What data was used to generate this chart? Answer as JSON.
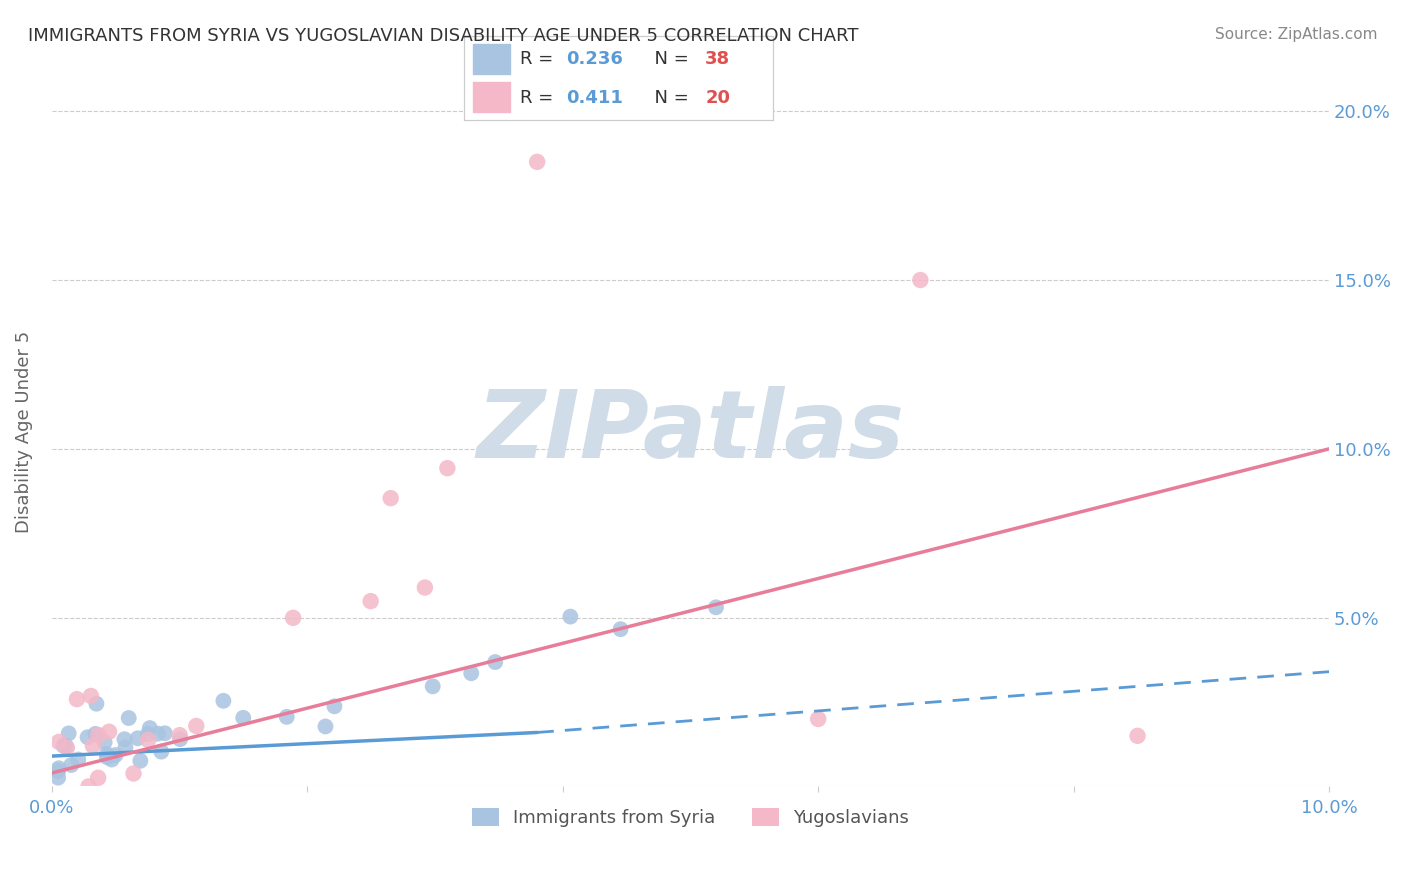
{
  "title": "IMMIGRANTS FROM SYRIA VS YUGOSLAVIAN DISABILITY AGE UNDER 5 CORRELATION CHART",
  "source": "Source: ZipAtlas.com",
  "ylabel": "Disability Age Under 5",
  "xlim": [
    0.0,
    0.1
  ],
  "ylim": [
    0.0,
    0.21
  ],
  "xtick_positions": [
    0.0,
    0.02,
    0.04,
    0.06,
    0.08,
    0.1
  ],
  "xtick_labels": [
    "0.0%",
    "",
    "",
    "",
    "",
    "10.0%"
  ],
  "ytick_positions": [
    0.0,
    0.05,
    0.1,
    0.15,
    0.2
  ],
  "ytick_labels": [
    "",
    "5.0%",
    "10.0%",
    "15.0%",
    "20.0%"
  ],
  "syria_R": 0.236,
  "syria_N": 38,
  "yugo_R": 0.411,
  "yugo_N": 20,
  "syria_color": "#a8c4e0",
  "yugo_color": "#f4b8c8",
  "syria_line_color": "#5b9bd5",
  "yugo_line_color": "#e87d9a",
  "background_color": "#ffffff",
  "grid_color": "#cccccc",
  "title_color": "#333333",
  "axis_label_color": "#666666",
  "tick_label_color": "#5b9bd5",
  "watermark_color": "#d0dce8",
  "legend_R_color": "#5b9bd5",
  "legend_N_color": "#e05050"
}
